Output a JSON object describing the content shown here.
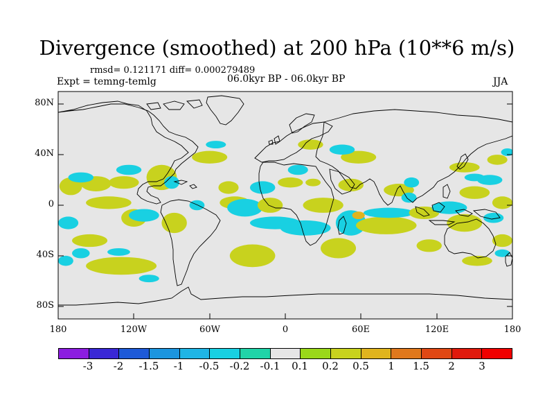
{
  "title": "Divergence (smoothed) at 200 hPa (10**6 m/s)",
  "stats": "rmsd= 0.121171 diff= 0.000279489",
  "experiment": "Expt = temng-temlg",
  "period": "06.0kyr BP - 06.0kyr BP",
  "season": "JJA",
  "y_axis": {
    "labels": [
      "80N",
      "40N",
      "0",
      "40S",
      "80S"
    ],
    "values": [
      80,
      40,
      0,
      -40,
      -80
    ]
  },
  "x_axis": {
    "labels": [
      "180",
      "120W",
      "60W",
      "0",
      "60E",
      "120E",
      "180"
    ],
    "values": [
      -180,
      -120,
      -60,
      0,
      60,
      120,
      180
    ]
  },
  "colorbar": {
    "labels": [
      "-3",
      "-2",
      "-1.5",
      "-1",
      "-0.5",
      "-0.2",
      "-0.1",
      "0.1",
      "0.2",
      "0.5",
      "1",
      "1.5",
      "2",
      "3"
    ],
    "colors": [
      "#8c1de0",
      "#3a28d6",
      "#1e5ad8",
      "#1c95df",
      "#1fb5e5",
      "#19d0e2",
      "#20d4a8",
      "#e6e6e6",
      "#9ad81a",
      "#c8d21e",
      "#e0b41e",
      "#e0781c",
      "#e04814",
      "#e01a0c",
      "#f00000"
    ]
  },
  "map_data": {
    "background_color": "#e6e6e6",
    "coastline_color": "#000000",
    "patches": [
      {
        "v": 0.3,
        "lon": -170,
        "lat": 15,
        "rx": 9,
        "ry": 7
      },
      {
        "v": 0.3,
        "lon": -150,
        "lat": 17,
        "rx": 12,
        "ry": 6
      },
      {
        "v": -0.3,
        "lon": -162,
        "lat": 22,
        "rx": 10,
        "ry": 4
      },
      {
        "v": -0.3,
        "lon": -172,
        "lat": -14,
        "rx": 8,
        "ry": 5
      },
      {
        "v": 0.3,
        "lon": -140,
        "lat": 2,
        "rx": 18,
        "ry": 5
      },
      {
        "v": 0.3,
        "lon": -120,
        "lat": -10,
        "rx": 10,
        "ry": 7
      },
      {
        "v": -0.3,
        "lon": -112,
        "lat": -8,
        "rx": 12,
        "ry": 5
      },
      {
        "v": 0.3,
        "lon": -128,
        "lat": 18,
        "rx": 12,
        "ry": 5
      },
      {
        "v": -0.3,
        "lon": -124,
        "lat": 28,
        "rx": 10,
        "ry": 4
      },
      {
        "v": 0.3,
        "lon": -155,
        "lat": -28,
        "rx": 14,
        "ry": 5
      },
      {
        "v": 0.3,
        "lon": -130,
        "lat": -48,
        "rx": 28,
        "ry": 7
      },
      {
        "v": -0.3,
        "lon": -174,
        "lat": -44,
        "rx": 6,
        "ry": 4
      },
      {
        "v": -0.3,
        "lon": -162,
        "lat": -38,
        "rx": 7,
        "ry": 4
      },
      {
        "v": -0.3,
        "lon": -132,
        "lat": -37,
        "rx": 9,
        "ry": 3
      },
      {
        "v": -0.3,
        "lon": -108,
        "lat": -58,
        "rx": 8,
        "ry": 3
      },
      {
        "v": 0.3,
        "lon": -98,
        "lat": 22,
        "rx": 12,
        "ry": 10
      },
      {
        "v": -0.3,
        "lon": -90,
        "lat": 18,
        "rx": 6,
        "ry": 5
      },
      {
        "v": 0.3,
        "lon": -88,
        "lat": -14,
        "rx": 10,
        "ry": 8
      },
      {
        "v": -0.3,
        "lon": -70,
        "lat": 0,
        "rx": 6,
        "ry": 4
      },
      {
        "v": 0.3,
        "lon": -60,
        "lat": 38,
        "rx": 14,
        "ry": 5
      },
      {
        "v": -0.3,
        "lon": -55,
        "lat": 48,
        "rx": 8,
        "ry": 3
      },
      {
        "v": 0.3,
        "lon": -45,
        "lat": 14,
        "rx": 8,
        "ry": 5
      },
      {
        "v": 0.3,
        "lon": -40,
        "lat": 2,
        "rx": 12,
        "ry": 5
      },
      {
        "v": -0.3,
        "lon": -32,
        "lat": -2,
        "rx": 14,
        "ry": 7
      },
      {
        "v": 0.3,
        "lon": -26,
        "lat": -40,
        "rx": 18,
        "ry": 9
      },
      {
        "v": -0.3,
        "lon": -18,
        "lat": 14,
        "rx": 10,
        "ry": 5
      },
      {
        "v": 0.3,
        "lon": -12,
        "lat": 0,
        "rx": 10,
        "ry": 6
      },
      {
        "v": -0.3,
        "lon": -8,
        "lat": -14,
        "rx": 20,
        "ry": 5
      },
      {
        "v": 0.3,
        "lon": 20,
        "lat": 48,
        "rx": 10,
        "ry": 4
      },
      {
        "v": -0.3,
        "lon": 10,
        "lat": 28,
        "rx": 8,
        "ry": 4
      },
      {
        "v": 0.3,
        "lon": 4,
        "lat": 18,
        "rx": 10,
        "ry": 4
      },
      {
        "v": 0.3,
        "lon": 22,
        "lat": 18,
        "rx": 6,
        "ry": 3
      },
      {
        "v": 0.3,
        "lon": 30,
        "lat": 0,
        "rx": 16,
        "ry": 6
      },
      {
        "v": -0.3,
        "lon": 16,
        "lat": -18,
        "rx": 20,
        "ry": 6
      },
      {
        "v": 0.3,
        "lon": 42,
        "lat": -34,
        "rx": 14,
        "ry": 8
      },
      {
        "v": -0.3,
        "lon": 52,
        "lat": -14,
        "rx": 12,
        "ry": 10
      },
      {
        "v": 0.6,
        "lon": 58,
        "lat": -8,
        "rx": 5,
        "ry": 3
      },
      {
        "v": 0.3,
        "lon": 58,
        "lat": 38,
        "rx": 14,
        "ry": 5
      },
      {
        "v": -0.3,
        "lon": 45,
        "lat": 44,
        "rx": 10,
        "ry": 4
      },
      {
        "v": 0.3,
        "lon": 52,
        "lat": 16,
        "rx": 10,
        "ry": 5
      },
      {
        "v": 0.3,
        "lon": 80,
        "lat": -16,
        "rx": 24,
        "ry": 7
      },
      {
        "v": -0.3,
        "lon": 82,
        "lat": -6,
        "rx": 20,
        "ry": 4
      },
      {
        "v": 0.3,
        "lon": 90,
        "lat": 12,
        "rx": 12,
        "ry": 5
      },
      {
        "v": -0.3,
        "lon": 98,
        "lat": 6,
        "rx": 6,
        "ry": 4
      },
      {
        "v": 0.3,
        "lon": 110,
        "lat": -6,
        "rx": 12,
        "ry": 5
      },
      {
        "v": -0.3,
        "lon": 130,
        "lat": -2,
        "rx": 14,
        "ry": 5
      },
      {
        "v": 0.3,
        "lon": 142,
        "lat": -14,
        "rx": 14,
        "ry": 7
      },
      {
        "v": 0.3,
        "lon": 150,
        "lat": 10,
        "rx": 12,
        "ry": 5
      },
      {
        "v": -0.3,
        "lon": 162,
        "lat": 20,
        "rx": 10,
        "ry": 4
      },
      {
        "v": 0.3,
        "lon": 168,
        "lat": 36,
        "rx": 8,
        "ry": 4
      },
      {
        "v": -0.3,
        "lon": 176,
        "lat": 42,
        "rx": 5,
        "ry": 3
      },
      {
        "v": -0.3,
        "lon": 100,
        "lat": 18,
        "rx": 6,
        "ry": 4
      },
      {
        "v": 0.3,
        "lon": 114,
        "lat": -32,
        "rx": 10,
        "ry": 5
      },
      {
        "v": 0.3,
        "lon": 152,
        "lat": -44,
        "rx": 12,
        "ry": 4
      },
      {
        "v": 0.3,
        "lon": 172,
        "lat": -28,
        "rx": 8,
        "ry": 5
      },
      {
        "v": -0.3,
        "lon": 172,
        "lat": -38,
        "rx": 6,
        "ry": 3
      },
      {
        "v": 0.3,
        "lon": 142,
        "lat": 30,
        "rx": 12,
        "ry": 4
      },
      {
        "v": -0.3,
        "lon": 150,
        "lat": 22,
        "rx": 8,
        "ry": 3
      },
      {
        "v": 0.3,
        "lon": 172,
        "lat": 2,
        "rx": 8,
        "ry": 5
      },
      {
        "v": -0.3,
        "lon": 165,
        "lat": -10,
        "rx": 8,
        "ry": 4
      }
    ]
  }
}
